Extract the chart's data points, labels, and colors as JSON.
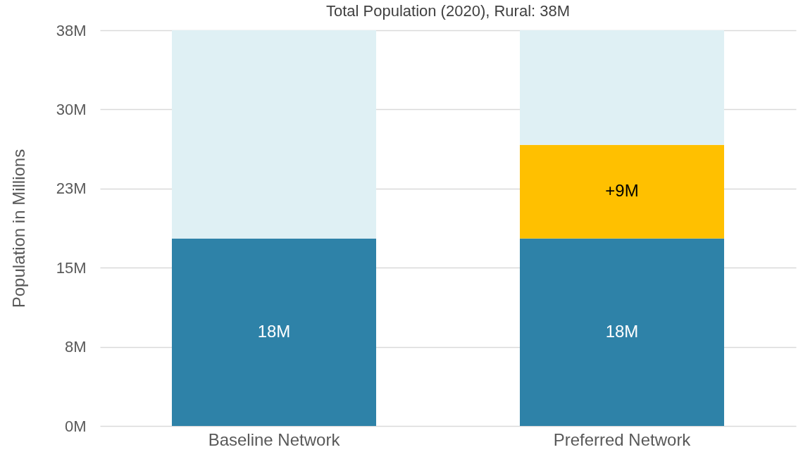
{
  "chart_data": {
    "type": "bar",
    "title": "Total Population (2020), Rural: 38M",
    "ylabel": "Population in Millions",
    "categories": [
      "Baseline Network",
      "Preferred Network"
    ],
    "stacked": true,
    "series": [
      {
        "color": "#2e82a8",
        "values": [
          18,
          18
        ],
        "value_labels": [
          "18M",
          "18M"
        ]
      },
      {
        "color": "#ffc000",
        "values": [
          null,
          9
        ],
        "value_labels": [
          null,
          "+9M"
        ]
      },
      {
        "color": "#dff0f4",
        "values": [
          20,
          11
        ],
        "value_labels": [
          null,
          null
        ]
      }
    ],
    "ylim": [
      0,
      38
    ],
    "yticks": [
      {
        "value": 0,
        "label": "0M"
      },
      {
        "value": 7.6,
        "label": "8M"
      },
      {
        "value": 15.2,
        "label": "15M"
      },
      {
        "value": 22.8,
        "label": "23M"
      },
      {
        "value": 30.4,
        "label": "30M"
      },
      {
        "value": 38,
        "label": "38M"
      }
    ],
    "grid": "y"
  }
}
